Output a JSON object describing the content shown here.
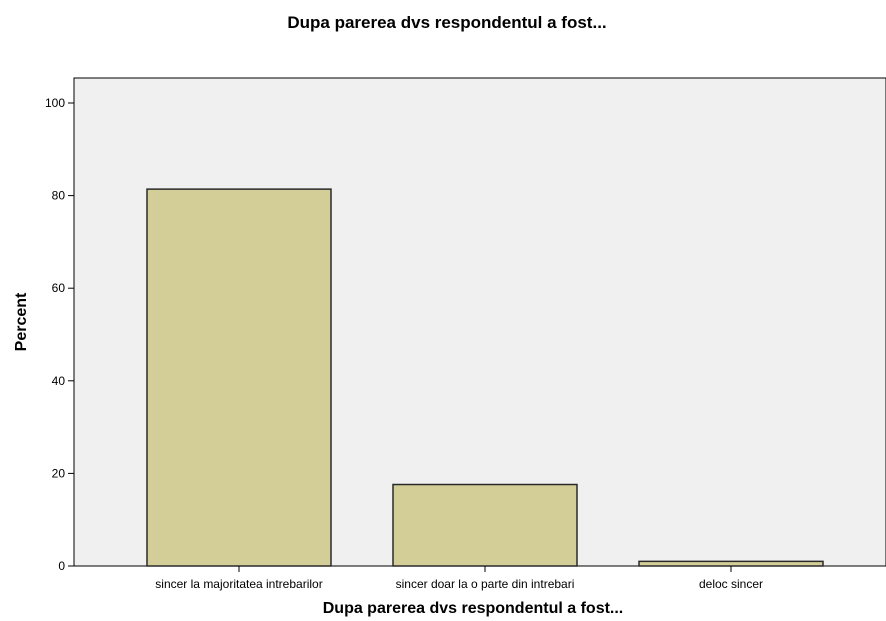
{
  "chart_data": {
    "type": "bar",
    "title": "Dupa parerea dvs respondentul a fost...",
    "xlabel": "Dupa parerea dvs respondentul a fost...",
    "ylabel": "Percent",
    "categories": [
      "sincer la majoritatea intrebarilor",
      "sincer doar la o parte din intrebari",
      "deloc sincer"
    ],
    "values": [
      81.4,
      17.6,
      1.0
    ],
    "ylim": [
      0,
      100
    ],
    "yticks": [
      "0",
      "20",
      "40",
      "60",
      "80",
      "100"
    ],
    "grid": false,
    "legend": "none",
    "colors": {
      "plot_background": "#f0f0f0",
      "bar_fill": "#d3ce97",
      "bar_stroke": "#2a2a2a",
      "axis": "#000000"
    }
  }
}
